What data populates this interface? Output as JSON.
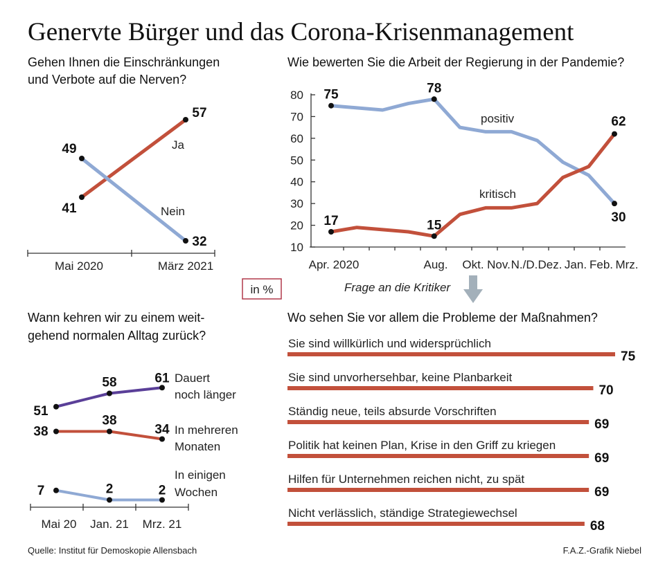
{
  "title": "Genervte Bürger und das Corona-Krisenmanagement",
  "unit_label": "in %",
  "source": "Quelle: Institut für Demoskopie Allensbach",
  "credit": "F.A.Z.-Grafik Niebel",
  "colors": {
    "red": "#c2503b",
    "blue": "#8fa9d4",
    "purple": "#5a3f98",
    "arrow": "#a3b0ba",
    "box": "#b0384a"
  },
  "chart_data": [
    {
      "id": "nerven",
      "type": "line",
      "title_lines": [
        "Gehen Ihnen die Einschränkungen",
        "und Verbote auf die Nerven?"
      ],
      "categories": [
        "Mai 2020",
        "März 2021"
      ],
      "series": [
        {
          "name": "Ja",
          "color": "red",
          "values": [
            41,
            57
          ]
        },
        {
          "name": "Nein",
          "color": "blue",
          "values": [
            49,
            32
          ]
        }
      ]
    },
    {
      "id": "regierung",
      "type": "line",
      "title": "Wie bewerten Sie die Arbeit der Regierung in der Pandemie?",
      "yticks": [
        80,
        70,
        60,
        50,
        40,
        30,
        20,
        10
      ],
      "ylim": [
        10,
        80
      ],
      "x_labels": [
        "Apr. 2020",
        "Aug.",
        "Okt.",
        "Nov.",
        "N./D.",
        "Dez.",
        "Jan.",
        "Feb.",
        "Mrz."
      ],
      "series": [
        {
          "name": "positiv",
          "color": "blue",
          "values": [
            75,
            74,
            73,
            76,
            78,
            65,
            63,
            63,
            59,
            49,
            43,
            30
          ],
          "labeled": [
            0,
            4,
            11
          ]
        },
        {
          "name": "kritisch",
          "color": "red",
          "values": [
            17,
            19,
            18,
            17,
            15,
            25,
            28,
            28,
            30,
            42,
            47,
            62
          ],
          "labeled": [
            0,
            4,
            11
          ]
        }
      ]
    },
    {
      "id": "alltag",
      "type": "line",
      "title_lines": [
        "Wann kehren wir zu einem weit-",
        "gehend normalen Alltag zurück?"
      ],
      "categories": [
        "Mai 20",
        "Jan. 21",
        "Mrz. 21"
      ],
      "series": [
        {
          "name_lines": [
            "Dauert",
            "noch länger"
          ],
          "color": "purple",
          "values": [
            51,
            58,
            61
          ]
        },
        {
          "name_lines": [
            "In mehreren",
            "Monaten"
          ],
          "color": "red",
          "values": [
            38,
            38,
            34
          ]
        },
        {
          "name_lines": [
            "In einigen",
            "Wochen"
          ],
          "color": "blue",
          "values": [
            7,
            2,
            2
          ]
        }
      ]
    },
    {
      "id": "probleme",
      "type": "bar",
      "pre_title": "Frage an die Kritiker",
      "title": "Wo sehen Sie vor allem die Probleme der Maßnahmen?",
      "categories": [
        "Sie sind willkürlich und widersprüchlich",
        "Sie sind unvorhersehbar, keine Planbarkeit",
        "Ständig neue, teils absurde Vorschriften",
        "Politik hat keinen Plan, Krise in den Griff zu kriegen",
        "Hilfen für Unternehmen reichen nicht, zu spät",
        "Nicht verlässlich, ständige Strategiewechsel"
      ],
      "values": [
        75,
        70,
        69,
        69,
        69,
        68
      ]
    }
  ]
}
